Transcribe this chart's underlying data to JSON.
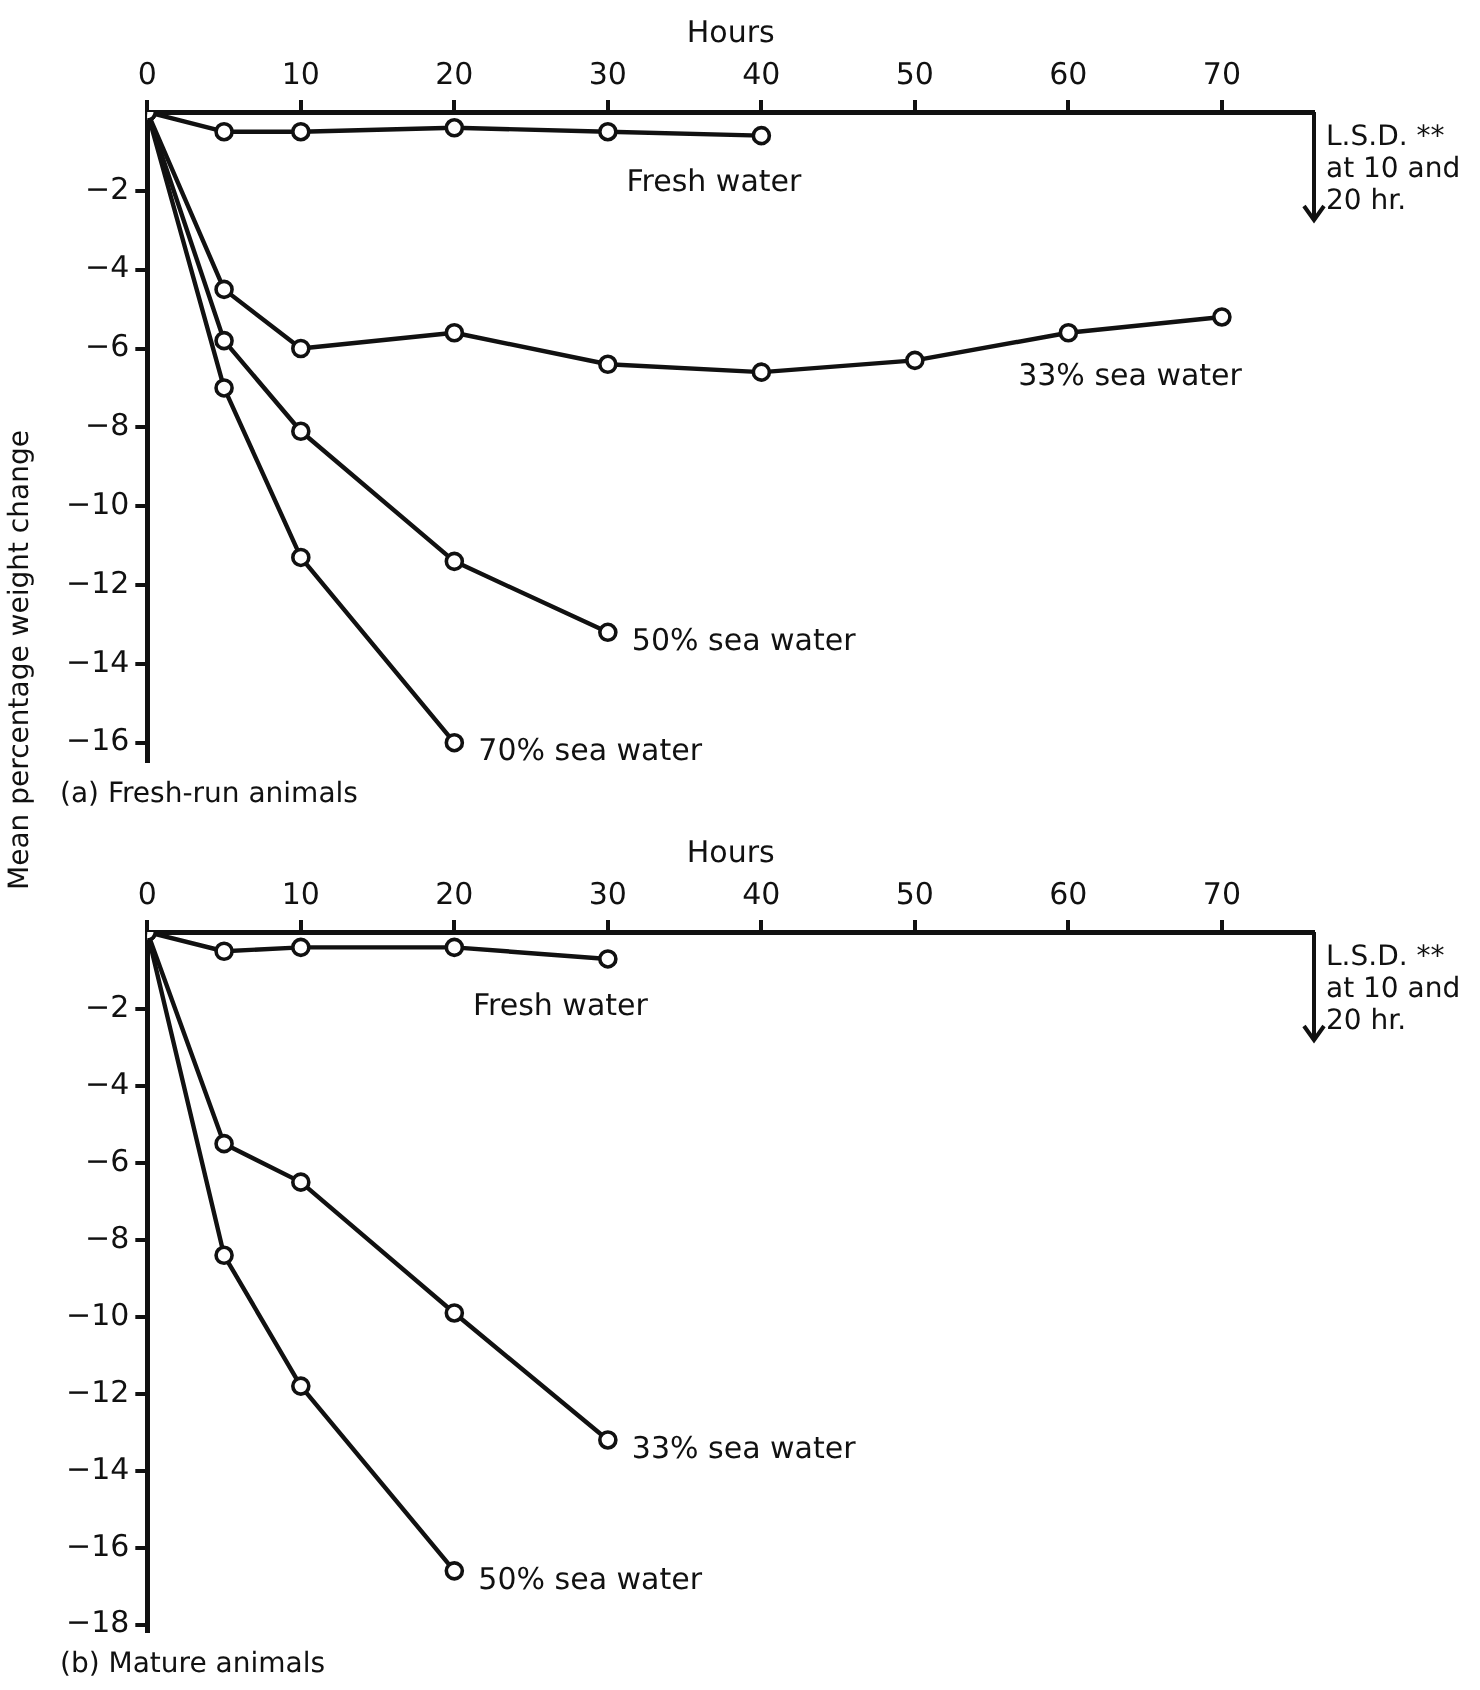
{
  "chart_data": [
    {
      "type": "line",
      "title": "(a) Fresh-run animals",
      "xlabel": "Hours",
      "ylabel": "Mean percentage weight change",
      "xlim": [
        0,
        76
      ],
      "xticks": [
        0,
        10,
        20,
        30,
        40,
        50,
        60,
        70
      ],
      "ylim": [
        -16.5,
        0
      ],
      "yticks": [
        -2,
        -4,
        -6,
        -8,
        -10,
        -12,
        -14,
        -16
      ],
      "grid": false,
      "legend": false,
      "marker": "circle",
      "line_style": "solid",
      "annotations": [
        "L.S.D. ** at 10 and 20 hr."
      ],
      "series": [
        {
          "name": "Fresh water",
          "color": "#111111",
          "x": [
            0,
            5,
            10,
            20,
            30,
            40
          ],
          "values": [
            0,
            -0.5,
            -0.5,
            -0.4,
            -0.5,
            -0.6
          ]
        },
        {
          "name": "33% sea water",
          "color": "#111111",
          "x": [
            0,
            5,
            10,
            20,
            30,
            40,
            50,
            60,
            70
          ],
          "values": [
            0,
            -4.5,
            -6.0,
            -5.6,
            -6.4,
            -6.6,
            -6.3,
            -5.6,
            -5.2
          ]
        },
        {
          "name": "50% sea water",
          "color": "#111111",
          "x": [
            0,
            5,
            10,
            20,
            30
          ],
          "values": [
            0,
            -5.8,
            -8.1,
            -11.4,
            -13.2
          ]
        },
        {
          "name": "70% sea water",
          "color": "#111111",
          "x": [
            0,
            5,
            10,
            20
          ],
          "values": [
            0,
            -7.0,
            -11.3,
            -16.0
          ]
        }
      ]
    },
    {
      "type": "line",
      "title": "(b) Mature animals",
      "xlabel": "Hours",
      "xlim": [
        0,
        76
      ],
      "xticks": [
        0,
        10,
        20,
        30,
        40,
        50,
        60,
        70
      ],
      "ylim": [
        -18.2,
        0
      ],
      "yticks": [
        -2,
        -4,
        -6,
        -8,
        -10,
        -12,
        -14,
        -16,
        -18
      ],
      "grid": false,
      "legend": false,
      "marker": "circle",
      "line_style": "solid",
      "annotations": [
        "L.S.D. ** at 10 and 20 hr."
      ],
      "series": [
        {
          "name": "Fresh water",
          "color": "#111111",
          "x": [
            0,
            5,
            10,
            20,
            30
          ],
          "values": [
            0,
            -0.5,
            -0.4,
            -0.4,
            -0.7
          ]
        },
        {
          "name": "33% sea water",
          "color": "#111111",
          "x": [
            0,
            5,
            10,
            20,
            30
          ],
          "values": [
            0,
            -5.5,
            -6.5,
            -9.9,
            -13.2
          ]
        },
        {
          "name": "50% sea water",
          "color": "#111111",
          "x": [
            0,
            5,
            10,
            20
          ],
          "values": [
            0,
            -8.4,
            -11.8,
            -16.6
          ]
        }
      ]
    }
  ]
}
